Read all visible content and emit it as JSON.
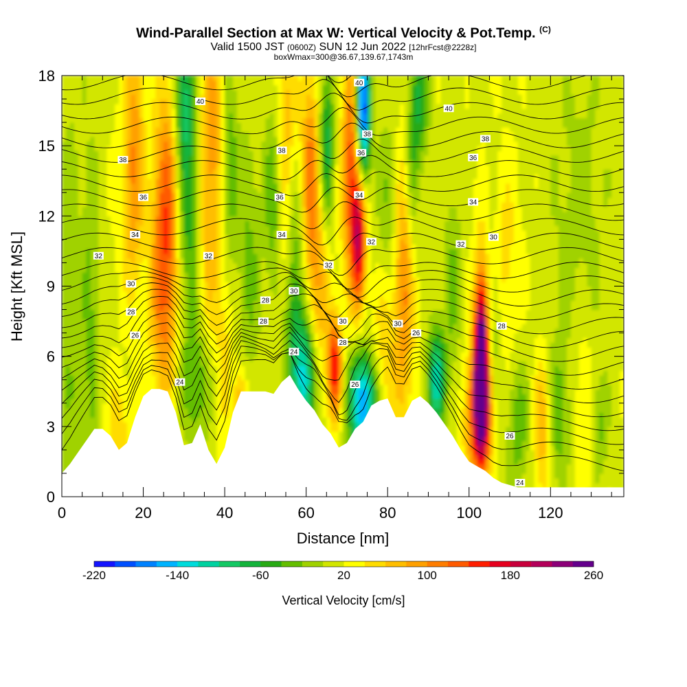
{
  "title": {
    "main": "Wind-Parallel Section at Max W: Vertical Velocity & Pot.Temp.",
    "copyright": "(C)",
    "valid_prefix": "Valid 1500 JST",
    "valid_utc": "(0600Z)",
    "valid_date": "SUN 12 Jun 2022",
    "forecast": "[12hrFcst@2228z]",
    "box": "boxWmax=300@36.67,139.67,1743m"
  },
  "chart_data": {
    "type": "heatmap",
    "xlabel": "Distance [nm]",
    "ylabel": "Height [Kft MSL]",
    "xlim": [
      0,
      138
    ],
    "ylim": [
      0,
      18
    ],
    "xticks": [
      0,
      20,
      40,
      60,
      80,
      100,
      120
    ],
    "yticks": [
      0,
      3,
      6,
      9,
      12,
      15,
      18
    ],
    "colorbar": {
      "label": "Vertical Velocity [cm/s]",
      "min": -220,
      "max": 260,
      "step": 20,
      "tick_labels": [
        "-220",
        "-140",
        "-60",
        "20",
        "100",
        "180",
        "260"
      ],
      "colors": [
        "#1414ff",
        "#0050ff",
        "#0082ff",
        "#00b4ff",
        "#00dcdc",
        "#00d2a0",
        "#14c864",
        "#14b43c",
        "#28aa14",
        "#64be00",
        "#a0d200",
        "#d2e600",
        "#ffff00",
        "#ffdc00",
        "#ffbe00",
        "#ffa000",
        "#ff7d00",
        "#ff5a00",
        "#ff1e00",
        "#e6001e",
        "#c8003c",
        "#b4005a",
        "#8c0078",
        "#64008c"
      ]
    },
    "terrain_kft": {
      "x": [
        0,
        2,
        4,
        6,
        8,
        10,
        12,
        14,
        16,
        18,
        20,
        22,
        24,
        26,
        28,
        30,
        32,
        34,
        36,
        38,
        40,
        42,
        44,
        46,
        48,
        50,
        52,
        54,
        56,
        58,
        60,
        62,
        64,
        66,
        68,
        70,
        72,
        74,
        76,
        78,
        80,
        82,
        84,
        86,
        88,
        90,
        92,
        94,
        96,
        98,
        100,
        102,
        104,
        106,
        108,
        110,
        112,
        114,
        116,
        118,
        120,
        122,
        124,
        126,
        128,
        130,
        132,
        134,
        136,
        138
      ],
      "h": [
        1.0,
        1.4,
        1.9,
        2.4,
        2.9,
        2.9,
        2.6,
        2.0,
        2.3,
        3.4,
        4.3,
        4.6,
        4.6,
        4.5,
        3.6,
        2.2,
        2.3,
        3.1,
        2.0,
        1.4,
        2.1,
        3.6,
        4.5,
        4.5,
        4.5,
        4.5,
        4.4,
        4.9,
        5.2,
        4.6,
        4.1,
        3.7,
        3.1,
        2.7,
        2.1,
        2.3,
        2.9,
        3.2,
        3.9,
        4.1,
        4.2,
        3.4,
        3.4,
        4.1,
        4.3,
        4.0,
        3.6,
        3.1,
        2.6,
        2.0,
        1.5,
        1.3,
        1.1,
        0.8,
        0.6,
        0.5,
        0.4,
        0.4,
        0.4,
        0.4,
        0.4,
        0.4,
        0.4,
        0.4,
        0.4,
        0.4,
        0.4,
        0.4,
        0.4,
        0.4
      ]
    },
    "vertical_velocity_features": [
      {
        "x": 2,
        "y": 6,
        "sx": 2,
        "sy": 9,
        "w": -30
      },
      {
        "x": 7,
        "y": 7,
        "sx": 1.5,
        "sy": 6,
        "w": -40
      },
      {
        "x": 14,
        "y": 3,
        "sx": 2,
        "sy": 1.5,
        "w": 40
      },
      {
        "x": 16,
        "y": 13,
        "sx": 2,
        "sy": 3,
        "w": 30
      },
      {
        "x": 18,
        "y": 15,
        "sx": 1.6,
        "sy": 4,
        "w": 70
      },
      {
        "x": 25,
        "y": 9,
        "sx": 2.3,
        "sy": 3.5,
        "w": 100
      },
      {
        "x": 26,
        "y": 14,
        "sx": 2.2,
        "sy": 3.5,
        "w": 70
      },
      {
        "x": 31,
        "y": 12,
        "sx": 2,
        "sy": 3,
        "w": -70
      },
      {
        "x": 30,
        "y": 17,
        "sx": 1.8,
        "sy": 2,
        "w": -100
      },
      {
        "x": 33,
        "y": 5,
        "sx": 2.5,
        "sy": 2,
        "w": -60
      },
      {
        "x": 36,
        "y": 10,
        "sx": 2,
        "sy": 3,
        "w": 50
      },
      {
        "x": 37,
        "y": 16,
        "sx": 2,
        "sy": 2.5,
        "w": 80
      },
      {
        "x": 40,
        "y": 7,
        "sx": 1.5,
        "sy": 4,
        "w": 30
      },
      {
        "x": 41,
        "y": 14,
        "sx": 1.5,
        "sy": 3,
        "w": -60
      },
      {
        "x": 44,
        "y": 4,
        "sx": 1.2,
        "sy": 1.2,
        "w": 70
      },
      {
        "x": 46,
        "y": 10,
        "sx": 2,
        "sy": 4,
        "w": -40
      },
      {
        "x": 52,
        "y": 13,
        "sx": 1.5,
        "sy": 3,
        "w": -60
      },
      {
        "x": 55,
        "y": 10,
        "sx": 1.5,
        "sy": 2,
        "w": 40
      },
      {
        "x": 55,
        "y": 16,
        "sx": 2,
        "sy": 3,
        "w": 60
      },
      {
        "x": 57,
        "y": 8,
        "sx": 1.8,
        "sy": 4,
        "w": -80
      },
      {
        "x": 60,
        "y": 5,
        "sx": 1.8,
        "sy": 1.8,
        "w": -130
      },
      {
        "x": 61,
        "y": 14,
        "sx": 1.6,
        "sy": 3,
        "w": 90
      },
      {
        "x": 63,
        "y": 9,
        "sx": 2,
        "sy": 3,
        "w": 60
      },
      {
        "x": 65,
        "y": 15,
        "sx": 1.3,
        "sy": 2.5,
        "w": -90
      },
      {
        "x": 67,
        "y": 5.5,
        "sx": 1.2,
        "sy": 1.5,
        "w": 150
      },
      {
        "x": 71,
        "y": 14,
        "sx": 1.6,
        "sy": 3.5,
        "w": 120
      },
      {
        "x": 73,
        "y": 11,
        "sx": 1.2,
        "sy": 2,
        "w": 150
      },
      {
        "x": 74,
        "y": 4,
        "sx": 2.5,
        "sy": 1.5,
        "w": -180
      },
      {
        "x": 74,
        "y": 16.5,
        "sx": 1.2,
        "sy": 2,
        "w": -220
      },
      {
        "x": 79,
        "y": 6,
        "sx": 2,
        "sy": 3,
        "w": 50
      },
      {
        "x": 80,
        "y": 12,
        "sx": 2,
        "sy": 3,
        "w": -40
      },
      {
        "x": 84,
        "y": 9,
        "sx": 1.8,
        "sy": 4,
        "w": 90
      },
      {
        "x": 86,
        "y": 14,
        "sx": 1.2,
        "sy": 3,
        "w": -50
      },
      {
        "x": 88,
        "y": 17,
        "sx": 1.5,
        "sy": 2,
        "w": -70
      },
      {
        "x": 92,
        "y": 5,
        "sx": 1.5,
        "sy": 1.5,
        "w": -130
      },
      {
        "x": 96,
        "y": 9,
        "sx": 1.5,
        "sy": 3,
        "w": -40
      },
      {
        "x": 103,
        "y": 6,
        "sx": 1.2,
        "sy": 2.5,
        "w": 260
      },
      {
        "x": 103,
        "y": 3.5,
        "sx": 2.5,
        "sy": 2,
        "w": 160
      },
      {
        "x": 106,
        "y": 6,
        "sx": 1.5,
        "sy": 4,
        "w": -60
      },
      {
        "x": 108,
        "y": 10,
        "sx": 3,
        "sy": 3,
        "w": 40
      },
      {
        "x": 112,
        "y": 3,
        "sx": 2,
        "sy": 2,
        "w": -50
      },
      {
        "x": 118,
        "y": 3,
        "sx": 1.5,
        "sy": 2,
        "w": 70
      },
      {
        "x": 122,
        "y": 3.5,
        "sx": 2,
        "sy": 2,
        "w": -50
      },
      {
        "x": 128,
        "y": 4,
        "sx": 2,
        "sy": 3,
        "w": 30
      },
      {
        "x": 127,
        "y": 12,
        "sx": 5,
        "sy": 5,
        "w": -25
      },
      {
        "x": 132,
        "y": 3,
        "sx": 1.5,
        "sy": 1.5,
        "w": -40
      }
    ],
    "theta_contours": {
      "levels_shown": [
        "24",
        "26",
        "28",
        "30",
        "32",
        "34",
        "36",
        "38",
        "40"
      ],
      "labels": [
        {
          "text": "40",
          "x": 34,
          "y": 16.9
        },
        {
          "text": "38",
          "x": 15,
          "y": 14.4
        },
        {
          "text": "36",
          "x": 20,
          "y": 12.8
        },
        {
          "text": "34",
          "x": 18,
          "y": 11.2
        },
        {
          "text": "32",
          "x": 9,
          "y": 10.3
        },
        {
          "text": "30",
          "x": 17,
          "y": 9.1
        },
        {
          "text": "28",
          "x": 17,
          "y": 7.9
        },
        {
          "text": "26",
          "x": 18,
          "y": 6.9
        },
        {
          "text": "38",
          "x": 54,
          "y": 14.8
        },
        {
          "text": "36",
          "x": 53.5,
          "y": 12.8
        },
        {
          "text": "34",
          "x": 54,
          "y": 11.2
        },
        {
          "text": "32",
          "x": 36,
          "y": 10.3
        },
        {
          "text": "28",
          "x": 50,
          "y": 8.4
        },
        {
          "text": "28",
          "x": 49.5,
          "y": 7.5
        },
        {
          "text": "30",
          "x": 57,
          "y": 8.8
        },
        {
          "text": "24",
          "x": 29,
          "y": 4.9
        },
        {
          "text": "24",
          "x": 57,
          "y": 6.2
        },
        {
          "text": "40",
          "x": 73,
          "y": 17.7
        },
        {
          "text": "38",
          "x": 75,
          "y": 15.5
        },
        {
          "text": "36",
          "x": 73.5,
          "y": 14.7
        },
        {
          "text": "34",
          "x": 73,
          "y": 12.9
        },
        {
          "text": "32",
          "x": 65.5,
          "y": 9.9
        },
        {
          "text": "32",
          "x": 76,
          "y": 10.9
        },
        {
          "text": "30",
          "x": 69,
          "y": 7.5
        },
        {
          "text": "28",
          "x": 69,
          "y": 6.6
        },
        {
          "text": "26",
          "x": 72,
          "y": 4.8
        },
        {
          "text": "30",
          "x": 82.5,
          "y": 7.4
        },
        {
          "text": "26",
          "x": 87,
          "y": 7.0
        },
        {
          "text": "40",
          "x": 95,
          "y": 16.6
        },
        {
          "text": "38",
          "x": 104,
          "y": 15.3
        },
        {
          "text": "36",
          "x": 101,
          "y": 14.5
        },
        {
          "text": "34",
          "x": 101,
          "y": 12.6
        },
        {
          "text": "32",
          "x": 98,
          "y": 10.8
        },
        {
          "text": "30",
          "x": 106,
          "y": 11.1
        },
        {
          "text": "28",
          "x": 108,
          "y": 7.3
        },
        {
          "text": "26",
          "x": 110,
          "y": 2.6
        },
        {
          "text": "24",
          "x": 112.5,
          "y": 0.6
        }
      ]
    }
  }
}
